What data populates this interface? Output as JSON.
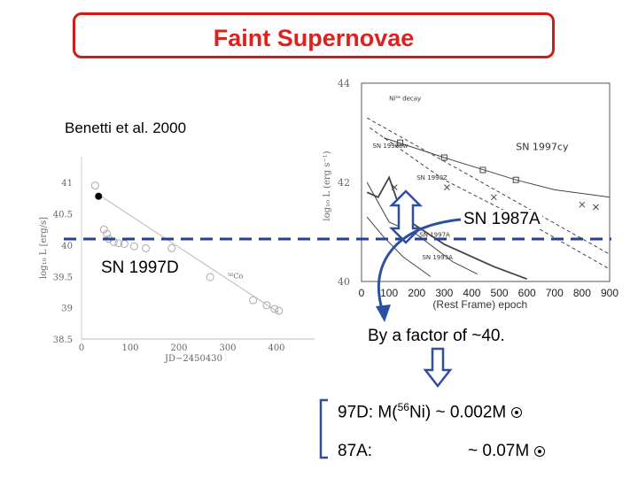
{
  "title": "Faint Supernovae",
  "citation": "Benetti et al. 2000",
  "labels": {
    "sn1987a": "SN 1987A",
    "sn1997d": "SN 1997D",
    "factor": "By a factor of ~40."
  },
  "equations": {
    "line1_prefix": "97D: M(",
    "line1_super": "56",
    "line1_suffix": "Ni) ~ 0.002M",
    "line2_prefix": "87A:",
    "line2_value": "~ 0.07M"
  },
  "colors": {
    "title": "#e0201c",
    "title_border": "#d31a1a",
    "arrow": "#2d4fa3",
    "dashed_line": "#2a3f8f"
  },
  "chart_data": [
    {
      "type": "scatter",
      "title": "",
      "xlabel": "JD−2450430",
      "ylabel": "log₁₀ L [erg/s]",
      "xlim": [
        0,
        460
      ],
      "ylim": [
        38.5,
        41.2
      ],
      "xticks": [
        "0",
        "100",
        "200",
        "300",
        "400"
      ],
      "yticks": [
        "41",
        "40.5",
        "40",
        "39.5",
        "39",
        "38.5"
      ],
      "annotation": "⁵⁶Co",
      "series": [
        {
          "values": [
            [
              28,
              40.95
            ],
            [
              46,
              40.25
            ],
            [
              52,
              40.18
            ],
            [
              56,
              40.1
            ],
            [
              66,
              40.05
            ],
            [
              76,
              40.03
            ],
            [
              88,
              40.02
            ],
            [
              108,
              39.98
            ],
            [
              132,
              39.95
            ],
            [
              185,
              39.95
            ],
            [
              264,
              39.49
            ],
            [
              352,
              39.12
            ],
            [
              380,
              39.04
            ],
            [
              396,
              38.98
            ],
            [
              405,
              38.95
            ]
          ]
        }
      ],
      "filled_point": [
        35,
        40.78
      ]
    },
    {
      "type": "line",
      "title": "",
      "xlabel": "(Rest Frame) epoch",
      "ylabel": "log₁₀ L (erg s⁻¹)",
      "xlim": [
        0,
        900
      ],
      "ylim": [
        40,
        44
      ],
      "xticks": [
        "0",
        "100",
        "200",
        "300",
        "400",
        "500",
        "600",
        "700",
        "800",
        "900"
      ],
      "yticks": [
        "44",
        "42",
        "40"
      ],
      "series_labels": [
        "Ni⁵⁶ decay",
        "SN 1998bw",
        "SN 1997cy",
        "SN 1990Z",
        "SN 1997A",
        "SN 1993A"
      ]
    }
  ]
}
